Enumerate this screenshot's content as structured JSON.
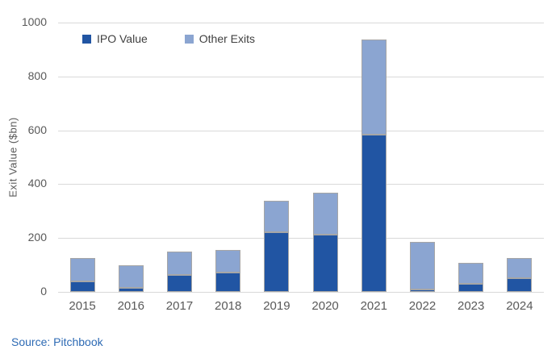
{
  "figure": {
    "source": "Source: Pitchbook"
  },
  "colors": {
    "ipo_value": "#2155A3",
    "other_exits": "#8BA5D1",
    "bar_border": "#A6A6A6",
    "gridline": "#D9D9D9",
    "axis_text": "#595959",
    "legend_text": "#404040",
    "source_text": "#2D6AB4"
  },
  "chart_data": {
    "type": "bar",
    "stacked": true,
    "categories": [
      "2015",
      "2016",
      "2017",
      "2018",
      "2019",
      "2020",
      "2021",
      "2022",
      "2023",
      "2024"
    ],
    "series": [
      {
        "name": "IPO Value",
        "color": "#2155A3",
        "values": [
          38,
          15,
          63,
          73,
          222,
          212,
          585,
          8,
          29,
          50
        ]
      },
      {
        "name": "Other Exits",
        "color": "#8BA5D1",
        "values": [
          89,
          83,
          87,
          82,
          115,
          155,
          353,
          178,
          80,
          77
        ]
      }
    ],
    "title": "",
    "xlabel": "",
    "ylabel": "Exit Value ($bn)",
    "ylim": [
      0,
      1000
    ],
    "yticks": [
      0,
      200,
      400,
      600,
      800,
      1000
    ],
    "grid": true,
    "legend_position": "inside-top-left"
  }
}
